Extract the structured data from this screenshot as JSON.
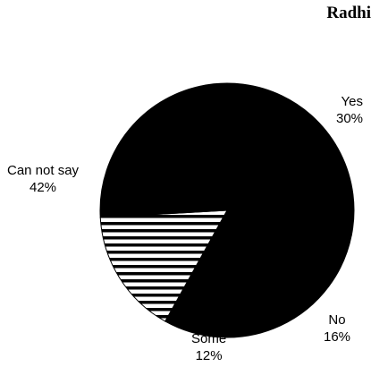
{
  "chart_data": {
    "type": "pie",
    "title": "Radhi",
    "slices": [
      {
        "name": "Yes",
        "value": 30,
        "label": "30%",
        "fill": "#000000",
        "pattern": "solid"
      },
      {
        "name": "No",
        "value": 16,
        "label": "16%",
        "fill": "#ffffff",
        "pattern": "horizontal-stripes"
      },
      {
        "name": "Some",
        "value": 12,
        "label": "12%",
        "fill": "#000000",
        "pattern": "solid"
      },
      {
        "name": "Can not say",
        "value": 42,
        "label": "42%",
        "fill": "#000000",
        "pattern": "solid"
      }
    ],
    "legend": "none",
    "labels": "outside"
  }
}
